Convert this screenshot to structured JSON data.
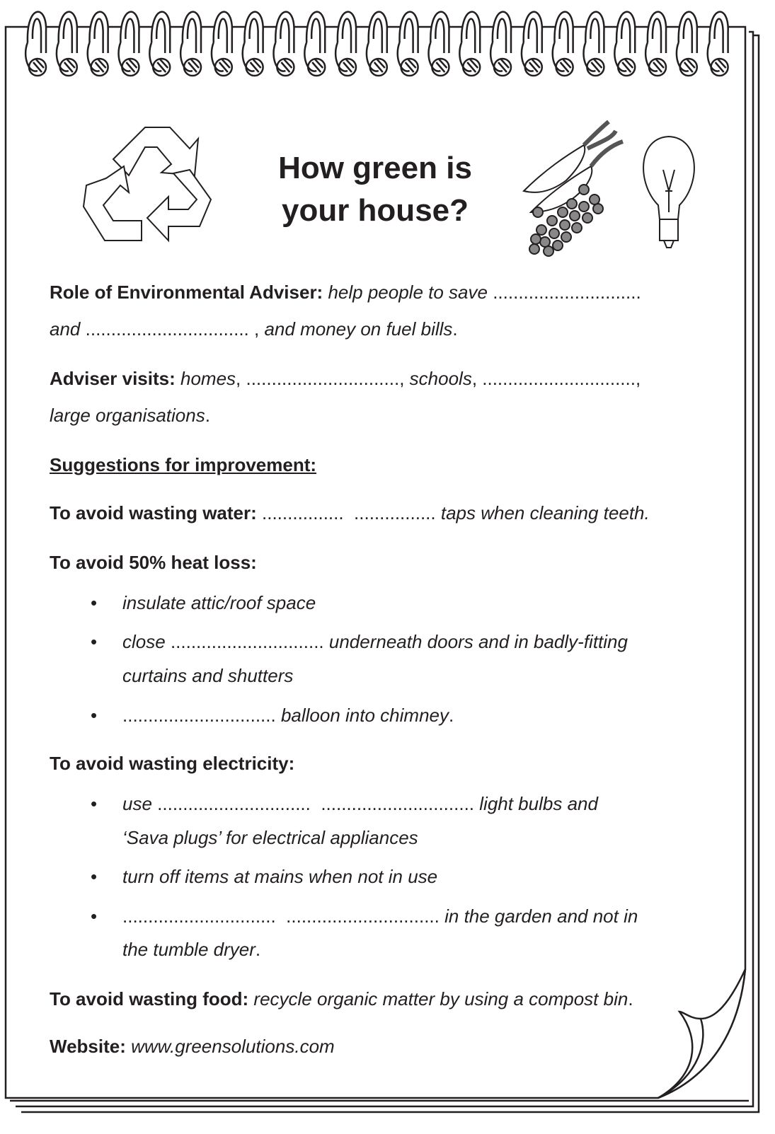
{
  "title": [
    "How green is",
    "your house?"
  ],
  "role": {
    "label": "Role of Environmental Adviser:",
    "segments": [
      "help people to save",
      ".............................",
      "and",
      "................................ ,",
      "and money on fuel bills",
      "."
    ]
  },
  "visits": {
    "label": "Adviser visits:",
    "segments": [
      "homes",
      ", ..............................,",
      "schools",
      ", ..............................,",
      "large organisations",
      "."
    ]
  },
  "suggestions_heading": "Suggestions for improvement:",
  "water": {
    "label": "To avoid wasting water:",
    "segments": [
      "................  ................",
      "taps when cleaning teeth."
    ]
  },
  "heat": {
    "label": "To avoid 50% heat loss:",
    "bullets": [
      [
        "insulate attic/roof space"
      ],
      [
        "close",
        "..............................",
        "underneath doors and in badly-fitting",
        "curtains and shutters"
      ],
      [
        "..............................",
        "balloon into chimney",
        "."
      ]
    ]
  },
  "electricity": {
    "label": "To avoid wasting electricity:",
    "bullets": [
      [
        "use",
        "..............................  ..............................",
        "light bulbs and",
        "‘Sava plugs’ for electrical appliances"
      ],
      [
        "turn off items at mains when not in use"
      ],
      [
        "..............................  ..............................",
        "in the garden and not in",
        "the tumble dryer",
        "."
      ]
    ]
  },
  "food": {
    "label": "To avoid wasting food:",
    "segments": [
      "recycle organic matter by using a compost bin",
      "."
    ]
  },
  "website": {
    "label": "Website:",
    "text": "www.greensolutions.com"
  }
}
